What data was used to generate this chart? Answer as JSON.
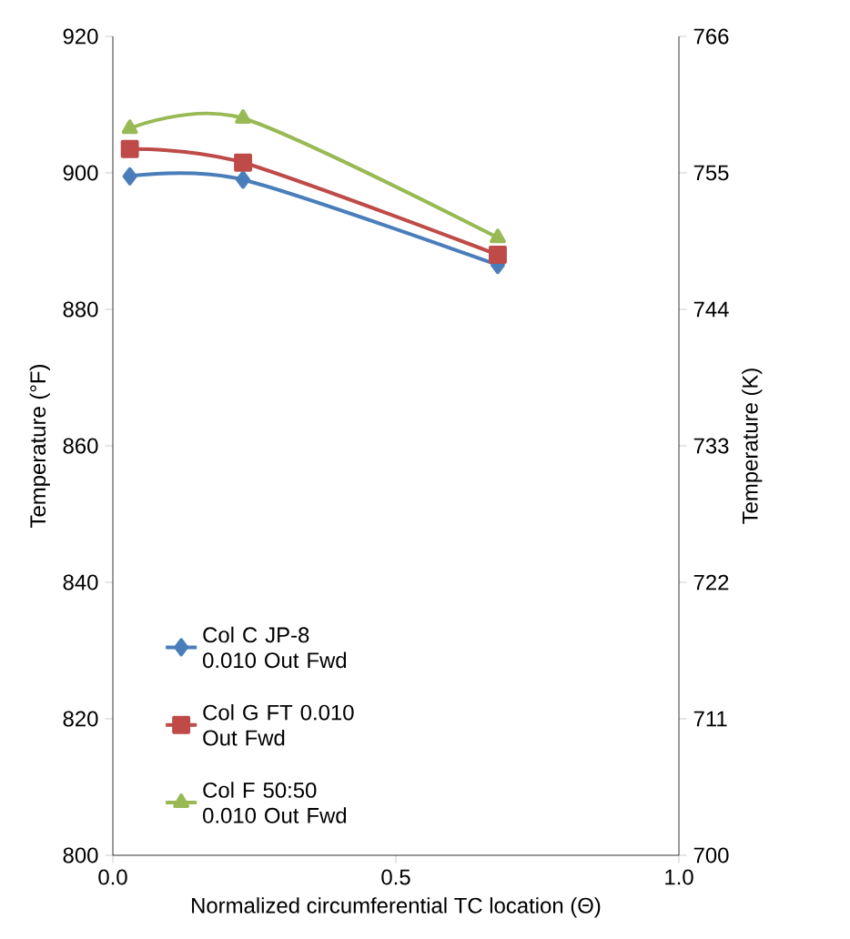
{
  "chart_data": {
    "type": "line",
    "xlabel": "Normalized circumferential TC location (Θ)",
    "ylabel": "Temperature (°F)",
    "y2label": "Temperature (K)",
    "xlim": [
      0,
      1
    ],
    "xticks": [
      {
        "value": 0,
        "label": "0.0"
      },
      {
        "value": 0.5,
        "label": "0.5"
      },
      {
        "value": 1,
        "label": "1.0"
      }
    ],
    "ylim": [
      800,
      920
    ],
    "yticks": [
      800,
      820,
      840,
      860,
      880,
      900,
      920
    ],
    "y2lim": [
      700,
      766
    ],
    "y2ticks": [
      700,
      711,
      722,
      733,
      744,
      755,
      766
    ],
    "x": [
      0.03,
      0.23,
      0.68
    ],
    "series": [
      {
        "name": "Col C JP-8 0.010 Out Fwd",
        "color": "#4a7ebb",
        "marker": "diamond",
        "values": [
          899.5,
          899,
          886.5
        ]
      },
      {
        "name": "Col G FT 0.010 Out Fwd",
        "color": "#be4b48",
        "marker": "square",
        "values": [
          903.5,
          901.5,
          888
        ]
      },
      {
        "name": "Col F 50:50 0.010 Out Fwd",
        "color": "#98b954",
        "marker": "triangle",
        "values": [
          906.5,
          908,
          890.5
        ]
      }
    ],
    "legend": "bottom left",
    "grid": false,
    "line_style": "solid"
  }
}
